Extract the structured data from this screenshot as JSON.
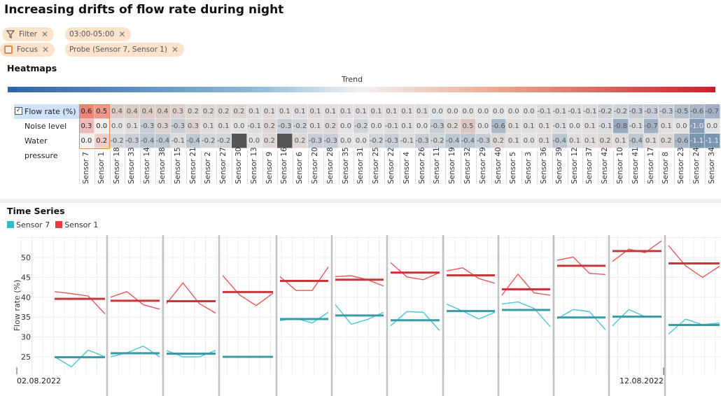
{
  "title": "Increasing drifts of flow rate during night",
  "chips": {
    "filter": "Filter",
    "time": "03:00-05:00",
    "focus": "Focus",
    "probe": "Probe (Sensor 7, Sensor 1)"
  },
  "heatmaps": {
    "title": "Heatmaps",
    "trend_label": "Trend",
    "rows": [
      "Flow rate (%)",
      "Noise level",
      "Water pressure"
    ],
    "selected_row": "Flow rate (%)",
    "focus_sensors": [
      "Sensor 7",
      "Sensor 1"
    ],
    "sensors": [
      "Sensor 7",
      "Sensor 1",
      "Sensor 18",
      "Sensor 33",
      "Sensor 14",
      "Sensor 38",
      "Sensor 15",
      "Sensor 21",
      "Sensor 2",
      "Sensor 27",
      "Sensor 30",
      "Sensor 13",
      "Sensor 9",
      "Sensor 16",
      "Sensor 6",
      "Sensor 20",
      "Sensor 28",
      "Sensor 35",
      "Sensor 31",
      "Sensor 25",
      "Sensor 22",
      "Sensor 4",
      "Sensor 26",
      "Sensor 11",
      "Sensor 19",
      "Sensor 32",
      "Sensor 29",
      "Sensor 40",
      "Sensor 5",
      "Sensor 3",
      "Sensor 36",
      "Sensor 39",
      "Sensor 12",
      "Sensor 37",
      "Sensor 42",
      "Sensor 10",
      "Sensor 41",
      "Sensor 17",
      "Sensor 8",
      "Sensor 23",
      "Sensor 24",
      "Sensor 34"
    ],
    "values": [
      [
        "0.6",
        "0.5",
        "0.4",
        "0.4",
        "0.4",
        "0.4",
        "0.3",
        "0.2",
        "0.2",
        "0.2",
        "0.2",
        "0.1",
        "0.1",
        "0.1",
        "0.1",
        "0.1",
        "0.1",
        "0.1",
        "0.1",
        "0.1",
        "0.1",
        "0.1",
        "0.1",
        "0.0",
        "0.0",
        "0.0",
        "0.0",
        "0.0",
        "0.0",
        "0.0",
        "-0.1",
        "-0.1",
        "-0.1",
        "-0.1",
        "-0.2",
        "-0.2",
        "-0.3",
        "-0.3",
        "-0.3",
        "-0.5",
        "-0.6",
        "-0.7"
      ],
      [
        "0.3",
        "0.0",
        "0.0",
        "0.1",
        "-0.3",
        "0.3",
        "-0.3",
        "0.3",
        "0.1",
        "0.1",
        "0.0",
        "-0.1",
        "0.2",
        "-0.3",
        "-0.2",
        "0.1",
        "0.2",
        "0.0",
        "-0.2",
        "0.0",
        "-0.1",
        "0.1",
        "0.0",
        "-0.3",
        "0.2",
        "0.5",
        "0.0",
        "-0.6",
        "0.1",
        "0.1",
        "0.1",
        "-0.1",
        "0.0",
        "0.1",
        "-0.1",
        "-0.8",
        "-0.1",
        "-0.7",
        "0.1",
        "0.0",
        "-1.0",
        "0.0"
      ],
      [
        "0.0",
        "0.2",
        "-0.2",
        "-0.3",
        "-0.4",
        "-0.4",
        "-0.1",
        "-0.4",
        "-0.2",
        "-0.2",
        null,
        "0.0",
        "0.2",
        null,
        "0.2",
        "-0.3",
        "-0.3",
        "0.0",
        "0.0",
        "-0.2",
        "-0.3",
        "-0.1",
        "-0.3",
        "-0.2",
        "-0.4",
        "-0.4",
        "-0.3",
        "0.2",
        "0.1",
        "0.0",
        "0.1",
        "-0.4",
        "0.1",
        "0.1",
        "0.2",
        "0.1",
        "-0.4",
        "0.1",
        "0.2",
        "-0.6",
        "-1.1",
        "-1.1"
      ]
    ],
    "colors": {
      "negative": "#2e63a6",
      "positive": "#cc1f2e",
      "missing": "#555555"
    }
  },
  "time_series": {
    "title": "Time Series",
    "ylabel": "Flow rate (%)",
    "chart_data": {
      "type": "line",
      "ylabel": "Flow rate (%)",
      "yticks": [
        25,
        30,
        35,
        40,
        45,
        50
      ],
      "ylim": [
        21,
        56
      ],
      "x_labels": [
        "02.08.2022",
        "12.08.2022"
      ],
      "series": [
        {
          "name": "Sensor 7",
          "color": "#2bbcd0",
          "mean_color": "#3a9aa6",
          "panels": [
            [
              25,
              22.5,
              26.7,
              25
            ],
            [
              25,
              26,
              27.7,
              25
            ],
            [
              26.6,
              25,
              25,
              26.6
            ],
            [
              25,
              24.9,
              25,
              25
            ],
            [
              34.1,
              34.7,
              33.5,
              36.2
            ],
            [
              38.1,
              33.2,
              34.4,
              36.2
            ],
            [
              32.8,
              36.4,
              36.2,
              31.6
            ],
            [
              38.3,
              36.5,
              34.5,
              36.2
            ],
            [
              38.3,
              38.8,
              37.2,
              32.6
            ],
            [
              34.6,
              36.9,
              36.4,
              31.8
            ],
            [
              32.8,
              36.9,
              35.1,
              35.1
            ],
            [
              30.7,
              34.5,
              33.1,
              33.5
            ]
          ],
          "means": [
            24.9,
            25.9,
            25.8,
            25.0,
            34.5,
            35.4,
            34.2,
            36.5,
            36.8,
            34.9,
            35.1,
            33.0
          ]
        },
        {
          "name": "Sensor 1",
          "color": "#e8393b",
          "mean_color": "#c8383a",
          "panels": [
            [
              41.4,
              40.9,
              40.3,
              35.8
            ],
            [
              40,
              41.4,
              38.1,
              37
            ],
            [
              38.4,
              43.6,
              38.4,
              36
            ],
            [
              45.5,
              40.6,
              37.9,
              41
            ],
            [
              45.2,
              41.7,
              41.7,
              47.6
            ],
            [
              45.2,
              45.4,
              44.4,
              42.8
            ],
            [
              48.7,
              45.1,
              44.4,
              46.2
            ],
            [
              46.6,
              47.4,
              44.7,
              43.5
            ],
            [
              40.5,
              45.8,
              41.1,
              40.5
            ],
            [
              49.3,
              50.1,
              46,
              45.7
            ],
            [
              49,
              52.1,
              51.2,
              54.2
            ],
            [
              53,
              47.9,
              45,
              47.8
            ]
          ],
          "means": [
            39.6,
            39.1,
            39.0,
            41.3,
            44.1,
            44.4,
            46.2,
            45.5,
            42.0,
            47.9,
            51.6,
            48.5
          ]
        }
      ]
    }
  }
}
